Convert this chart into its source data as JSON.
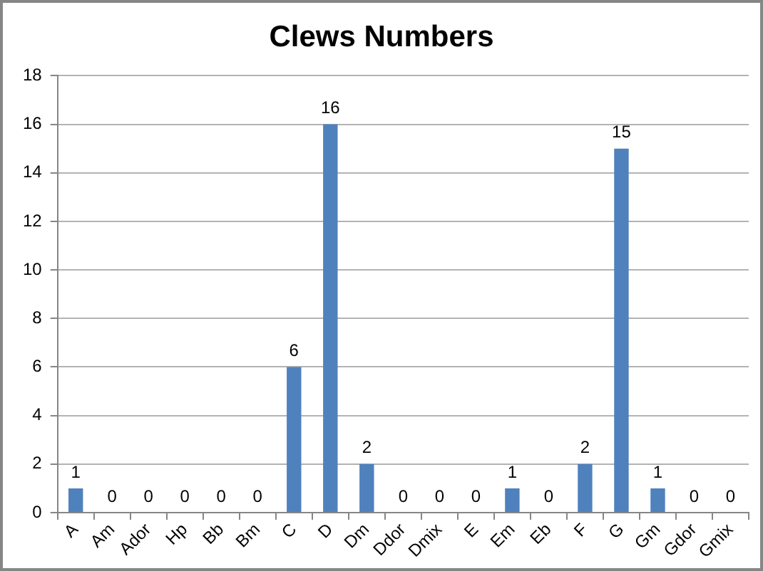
{
  "chart_data": {
    "type": "bar",
    "title": "Clews Numbers",
    "categories": [
      "A",
      "Am",
      "Ador",
      "Hp",
      "Bb",
      "Bm",
      "C",
      "D",
      "Dm",
      "Ddor",
      "Dmix",
      "E",
      "Em",
      "Eb",
      "F",
      "G",
      "Gm",
      "Gdor",
      "Gmix"
    ],
    "values": [
      1,
      0,
      0,
      0,
      0,
      0,
      6,
      16,
      2,
      0,
      0,
      0,
      1,
      0,
      2,
      15,
      1,
      0,
      0
    ],
    "color": "#4f81bd",
    "ylim": [
      0,
      18
    ],
    "yticks": [
      0,
      2,
      4,
      6,
      8,
      10,
      12,
      14,
      16,
      18
    ],
    "grid": "y",
    "data_labels": true
  }
}
